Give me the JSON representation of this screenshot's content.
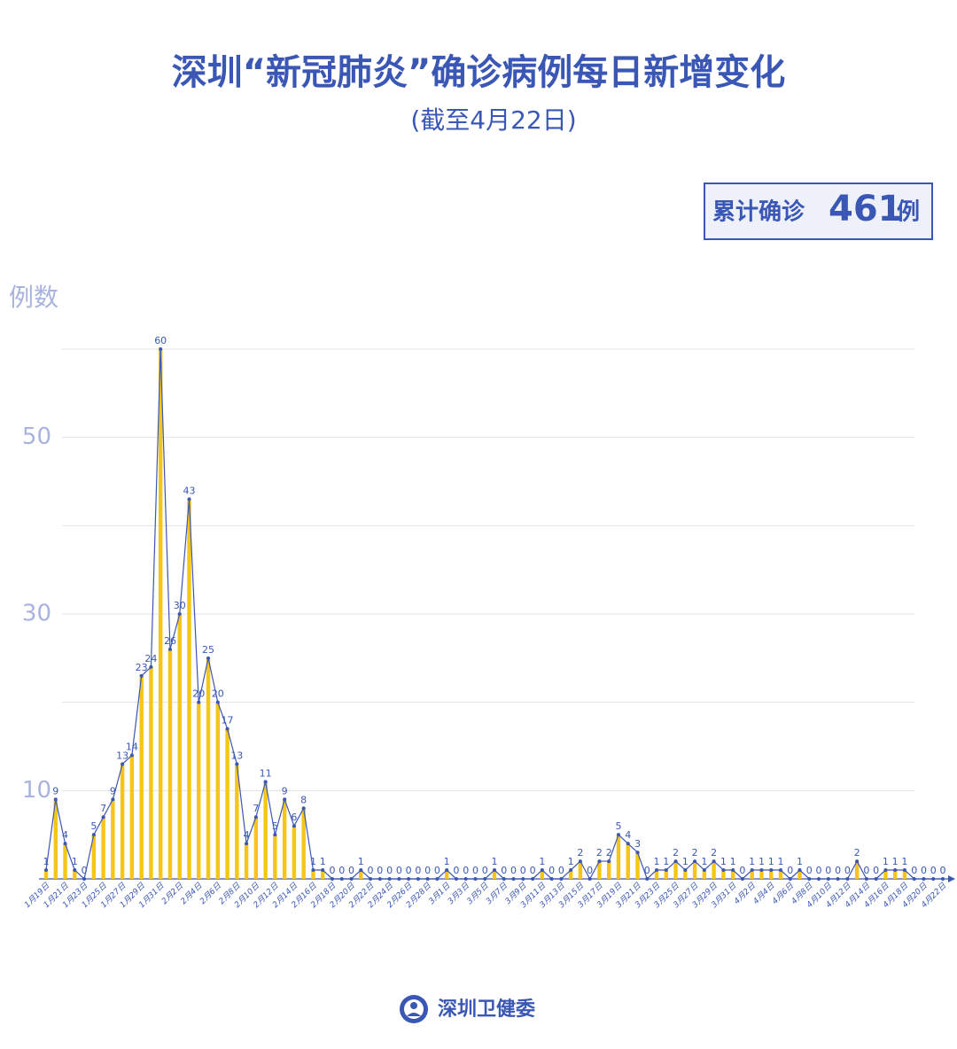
{
  "chart_data": {
    "type": "bar_line",
    "title": "深圳“新冠肺炎”确诊病例每日新增变化",
    "subtitle": "(截至4月22日)",
    "total": {
      "prefix": "累计确诊",
      "value": 461,
      "suffix": "例"
    },
    "y_label": "例数",
    "footer": "深圳卫健委",
    "bar_color": "#f5c518",
    "line_color": "#3a57b5",
    "ylim": [
      0,
      60
    ],
    "yticks": [
      10,
      30,
      50
    ],
    "ygrid": [
      10,
      20,
      30,
      40,
      50,
      60
    ],
    "categories": [
      "1月19日",
      null,
      "1月21日",
      null,
      "1月23日",
      null,
      "1月25日",
      null,
      "1月27日",
      null,
      "1月29日",
      null,
      "1月31日",
      null,
      "2月2日",
      null,
      "2月4日",
      null,
      "2月6日",
      null,
      "2月8日",
      null,
      "2月10日",
      null,
      "2月12日",
      null,
      "2月14日",
      null,
      "2月16日",
      null,
      "2月18日",
      null,
      "2月20日",
      null,
      "2月22日",
      null,
      "2月24日",
      null,
      "2月26日",
      null,
      "2月28日",
      null,
      "3月1日",
      null,
      "3月3日",
      null,
      "3月5日",
      null,
      "3月7日",
      null,
      "3月9日",
      null,
      "3月11日",
      null,
      "3月13日",
      null,
      "3月15日",
      null,
      "3月17日",
      null,
      "3月19日",
      null,
      "3月21日",
      null,
      "3月23日",
      null,
      "3月25日",
      null,
      "3月27日",
      null,
      "3月29日",
      null,
      "3月31日",
      null,
      "4月2日",
      null,
      "4月4日",
      null,
      "4月6日",
      null,
      "4月8日",
      null,
      "4月10日",
      null,
      "4月12日",
      null,
      "4月14日",
      null,
      "4月16日",
      null,
      "4月18日",
      null,
      "4月20日",
      null,
      "4月22日"
    ],
    "values": [
      1,
      9,
      4,
      1,
      0,
      5,
      7,
      9,
      13,
      14,
      23,
      24,
      60,
      26,
      30,
      43,
      20,
      25,
      20,
      17,
      13,
      4,
      7,
      11,
      5,
      9,
      6,
      8,
      1,
      1,
      0,
      0,
      0,
      1,
      0,
      0,
      0,
      0,
      0,
      0,
      0,
      0,
      1,
      0,
      0,
      0,
      0,
      1,
      0,
      0,
      0,
      0,
      1,
      0,
      0,
      1,
      2,
      0,
      2,
      2,
      5,
      4,
      3,
      0,
      1,
      1,
      2,
      1,
      2,
      1,
      2,
      1,
      1,
      0,
      1,
      1,
      1,
      1,
      0,
      1,
      0,
      0,
      0,
      0,
      0,
      2,
      0,
      0,
      1,
      1,
      1,
      0,
      0,
      0,
      0
    ]
  }
}
